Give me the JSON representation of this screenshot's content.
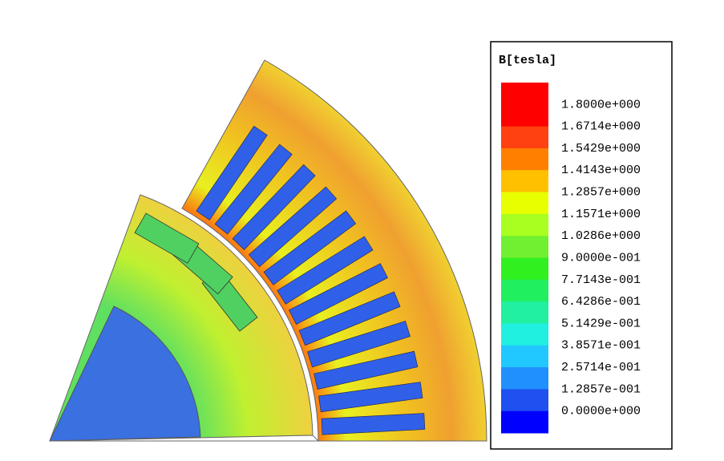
{
  "legend": {
    "title": "B[tesla]",
    "labels": [
      "1.8000e+000",
      "1.6714e+000",
      "1.5429e+000",
      "1.4143e+000",
      "1.2857e+000",
      "1.1571e+000",
      "1.0286e+000",
      "9.0000e-001",
      "7.7143e-001",
      "6.4286e-001",
      "5.1429e-001",
      "3.8571e-001",
      "2.5714e-001",
      "1.2857e-001",
      "0.0000e+000"
    ],
    "colors": [
      "#ff0000",
      "#ff4010",
      "#ff8000",
      "#ffc000",
      "#e8ff00",
      "#a8ff20",
      "#70f030",
      "#30f020",
      "#20f060",
      "#20f0a0",
      "#20f0e0",
      "#20c8ff",
      "#2090ff",
      "#2050f0",
      "#0000ff"
    ]
  }
}
